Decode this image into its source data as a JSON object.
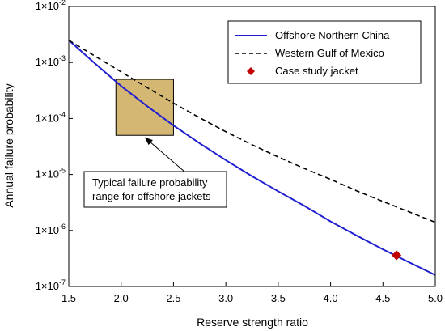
{
  "chart_data": {
    "type": "line",
    "xlabel": "Reserve strength ratio",
    "ylabel": "Annual failure probability",
    "xlim": [
      1.5,
      5.0
    ],
    "ylim": [
      1e-07,
      0.01
    ],
    "yscale": "log",
    "grid": false,
    "legend_position": "top-right",
    "x_ticks": [
      "1.5",
      "2.0",
      "2.5",
      "3.0",
      "3.5",
      "4.0",
      "4.5",
      "5.0"
    ],
    "y_ticks": [
      {
        "base": "1×10",
        "exp": "-7"
      },
      {
        "base": "1×10",
        "exp": "-6"
      },
      {
        "base": "1×10",
        "exp": "-5"
      },
      {
        "base": "1×10",
        "exp": "-4"
      },
      {
        "base": "1×10",
        "exp": "-3"
      },
      {
        "base": "1×10",
        "exp": "-2"
      }
    ],
    "series": [
      {
        "name": "Offshore Northern China",
        "color": "#1f1fd1",
        "style": "solid",
        "x": [
          1.5,
          1.75,
          2.0,
          2.25,
          2.5,
          2.75,
          3.0,
          3.25,
          3.5,
          3.75,
          4.0,
          4.25,
          4.5,
          4.75,
          5.0
        ],
        "y": [
          0.0025,
          0.00096,
          0.00038,
          0.000165,
          7.5e-05,
          3.6e-05,
          1.8e-05,
          9.3e-06,
          5e-06,
          2.75e-06,
          1.45e-06,
          8.1e-07,
          4.6e-07,
          2.7e-07,
          1.6e-07
        ]
      },
      {
        "name": "Western Gulf of Mexico",
        "color": "#000000",
        "style": "dashed",
        "x": [
          1.5,
          1.75,
          2.0,
          2.25,
          2.5,
          2.75,
          3.0,
          3.25,
          3.5,
          3.75,
          4.0,
          4.25,
          4.5,
          4.75,
          5.0
        ],
        "y": [
          0.0025,
          0.0013,
          0.00068,
          0.000355,
          0.000188,
          0.000103,
          5.8e-05,
          3.4e-05,
          2.05e-05,
          1.28e-05,
          8.2e-06,
          5.1e-06,
          3.3e-06,
          2.15e-06,
          1.4e-06
        ]
      }
    ],
    "points": [
      {
        "name": "Case study jacket",
        "color": "#c00000",
        "marker": "diamond",
        "x": 4.63,
        "y": 3.6e-07
      }
    ],
    "shaded_region": {
      "x": [
        1.95,
        2.5
      ],
      "y": [
        5e-05,
        0.0005
      ],
      "fill": "#c9a550",
      "opacity": 0.8,
      "stroke": "#000000"
    },
    "annotation": {
      "lines": [
        "Typical failure probability",
        "range for offshore jackets"
      ],
      "arrow_target": {
        "x": 2.23,
        "y": 5e-05
      }
    }
  }
}
